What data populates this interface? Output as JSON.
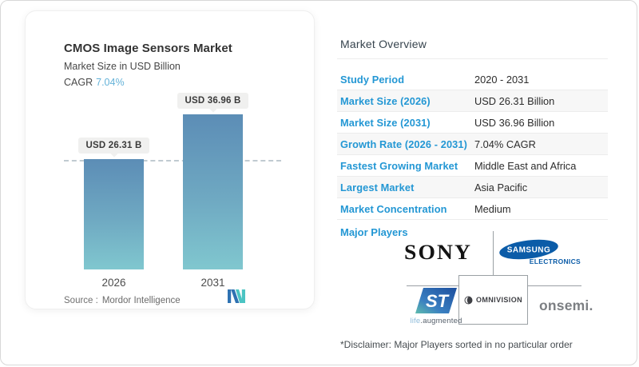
{
  "chart_card": {
    "title": "CMOS Image Sensors Market",
    "subtitle": "Market Size in USD Billion",
    "cagr_label": "CAGR",
    "cagr_value": "7.04%",
    "source_label": "Source :",
    "source_value": "Mordor Intelligence"
  },
  "chart_data": {
    "type": "bar",
    "categories": [
      "2026",
      "2031"
    ],
    "values": [
      26.31,
      36.96
    ],
    "bar_labels": [
      "USD 26.31 B",
      "USD 36.96 B"
    ],
    "title": "CMOS Image Sensors Market",
    "ylabel": "Market Size in USD Billion",
    "unit": "USD Billion",
    "cagr": "7.04%",
    "reference_line_at": 26.31,
    "legend": "none",
    "grid": "off",
    "colors": {
      "bar_gradient_top": "#5c8db6",
      "bar_gradient_bottom": "#80c7cf",
      "accent_blue": "#2397d4",
      "cagr_teal": "#64b2d8"
    }
  },
  "overview": {
    "heading": "Market Overview",
    "rows": [
      {
        "label": "Study Period",
        "value": "2020 - 2031"
      },
      {
        "label": "Market Size (2026)",
        "value": "USD 26.31 Billion"
      },
      {
        "label": "Market Size (2031)",
        "value": "USD 36.96 Billion"
      },
      {
        "label": "Growth Rate (2026 - 2031)",
        "value": "7.04% CAGR"
      },
      {
        "label": "Fastest Growing Market",
        "value": "Middle East and Africa"
      },
      {
        "label": "Largest Market",
        "value": "Asia Pacific"
      },
      {
        "label": "Market Concentration",
        "value": "Medium"
      }
    ],
    "major_players_label": "Major Players",
    "players": [
      "Sony",
      "Samsung Electronics",
      "STMicroelectronics",
      "OmniVision",
      "onsemi"
    ],
    "disclaimer": "*Disclaimer: Major Players sorted in no particular order"
  },
  "logos": {
    "sony_text": "SONY",
    "samsung_text": "SAMSUNG",
    "samsung_sub": "ELECTRONICS",
    "st_text": "ST",
    "st_tagline_light": "life",
    "st_tagline_dark": ".augmented",
    "omnivision_text": "OMNIVISION",
    "onsemi_text": "onsemi."
  }
}
